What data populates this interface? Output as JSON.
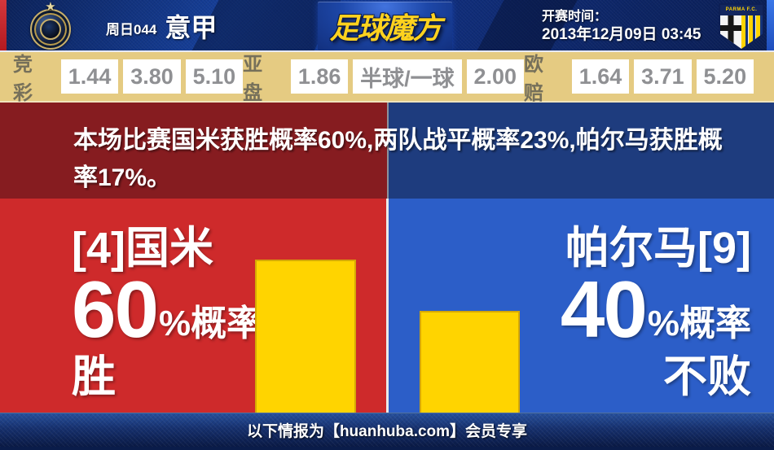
{
  "match": {
    "round_label": "周日044",
    "league": "意甲",
    "kickoff_label": "开赛时间：",
    "kickoff_time": "2013年12月09日 03:45"
  },
  "brand": {
    "site_logo": "足球魔方"
  },
  "crests": {
    "home": "inter-milan",
    "home_star": "★",
    "away": "parma",
    "away_text": "PARMA F.C."
  },
  "odds": {
    "jingcai": {
      "label": "竞彩",
      "values": [
        "1.44",
        "3.80",
        "5.10"
      ]
    },
    "yapan": {
      "label": "亚盘",
      "values": [
        "1.86",
        "半球/一球",
        "2.00"
      ]
    },
    "oupei": {
      "label": "欧赔",
      "values": [
        "1.64",
        "3.71",
        "5.20"
      ]
    }
  },
  "summary": {
    "text": "本场比赛国米获胜概率60%,两队战平概率23%,帕尔马获胜概率17%。"
  },
  "home_panel": {
    "team": "[4]国米",
    "percent": "60",
    "unit": "%概率",
    "outcome": "胜"
  },
  "away_panel": {
    "team": "帕尔马[9]",
    "percent": "40",
    "unit": "%概率",
    "outcome": "不败"
  },
  "footer": {
    "text": "以下情报为【huanhuba.com】会员专享"
  },
  "colors": {
    "home_red": "#ce2a2b",
    "home_dark_red": "#861c20",
    "away_blue": "#2c5ec8",
    "away_dark_blue": "#1e3c7e",
    "bar_yellow": "#ffd400",
    "odds_bar_tan": "#e5cb82",
    "header_navy": "#102e7c",
    "logo_gold": "#ffd21e"
  },
  "chart_data": {
    "type": "bar",
    "categories": [
      "国米 胜",
      "帕尔马 不败"
    ],
    "values": [
      60,
      40
    ],
    "unit": "%",
    "ylim": [
      0,
      100
    ],
    "probabilities_from_text": {
      "home_win": 60,
      "draw": 23,
      "away_win": 17
    }
  }
}
